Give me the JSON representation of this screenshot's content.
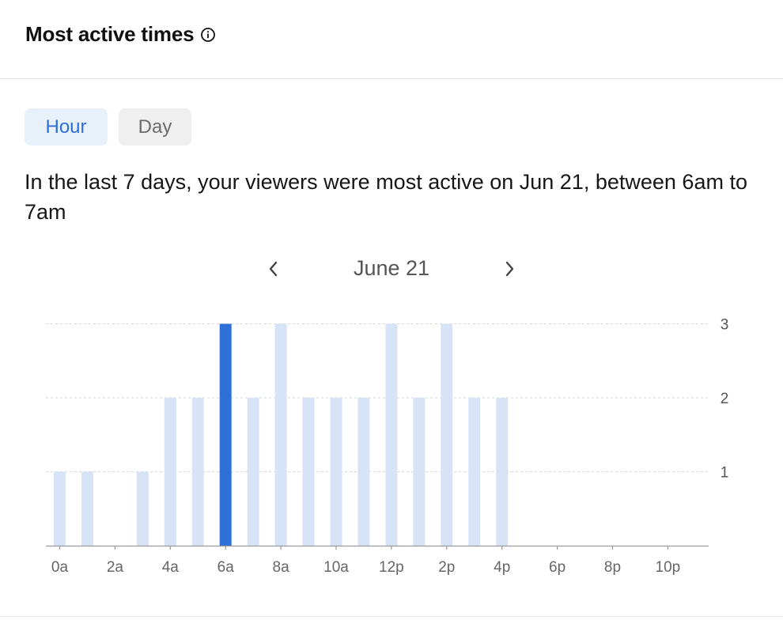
{
  "header": {
    "title": "Most active times",
    "info_icon": "info-circle-icon"
  },
  "toggle": {
    "options": [
      "Hour",
      "Day"
    ],
    "selected": "Hour"
  },
  "summary": "In the last 7 days, your viewers were most active on Jun 21, between 6am to 7am",
  "date_nav": {
    "label": "June 21",
    "prev_icon": "chevron-left-icon",
    "next_icon": "chevron-right-icon"
  },
  "colors": {
    "accent": "#2e6fd8",
    "bar": "#d7e4f7",
    "highlight": "#2e6fd8"
  },
  "chart_data": {
    "type": "bar",
    "categories": [
      "0a",
      "1a",
      "2a",
      "3a",
      "4a",
      "5a",
      "6a",
      "7a",
      "8a",
      "9a",
      "10a",
      "11a",
      "12p",
      "1p",
      "2p",
      "3p",
      "4p",
      "5p",
      "6p",
      "7p",
      "8p",
      "9p",
      "10p",
      "11p"
    ],
    "values": [
      1,
      1,
      0,
      1,
      2,
      2,
      3,
      2,
      3,
      2,
      2,
      2,
      3,
      2,
      3,
      2,
      2,
      0,
      0,
      0,
      0,
      0,
      0,
      0
    ],
    "highlight_index": 6,
    "x_tick_labels": [
      "0a",
      "2a",
      "4a",
      "6a",
      "8a",
      "10a",
      "12p",
      "2p",
      "4p",
      "6p",
      "8p",
      "10p"
    ],
    "y_ticks": [
      1,
      2,
      3
    ],
    "ylim": [
      0,
      3
    ],
    "y_axis_side": "right",
    "grid": "dashed horizontal"
  }
}
